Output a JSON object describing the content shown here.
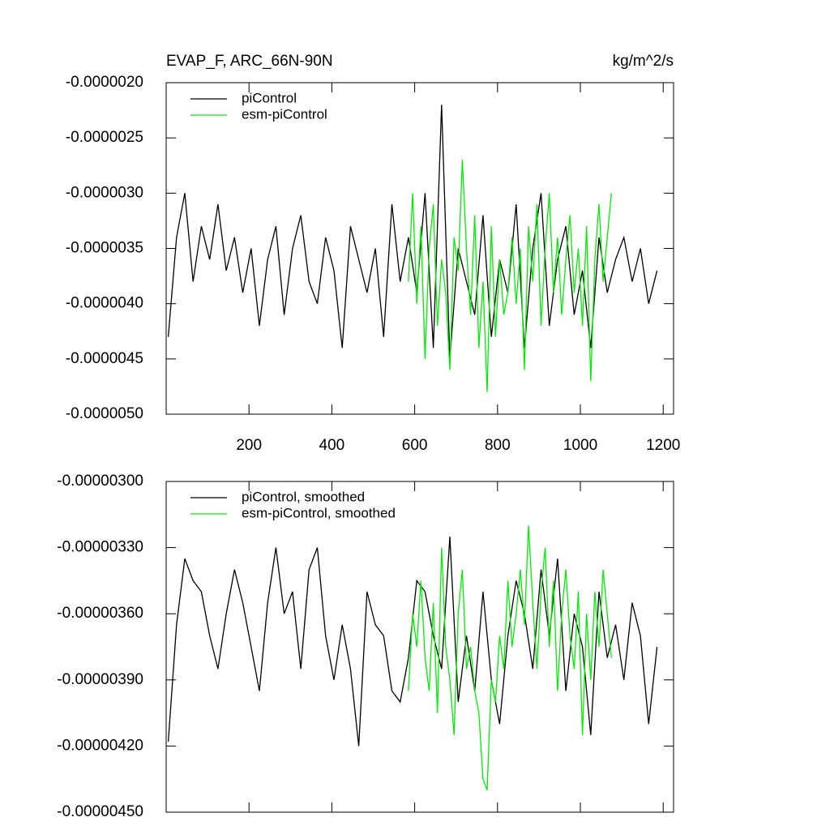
{
  "chart_data": [
    {
      "type": "line",
      "title": "EVAP_F, ARC_66N-90N",
      "units": "kg/m^2/s",
      "legend": "upper left",
      "xlim": [
        0,
        1225
      ],
      "xticks": [
        200,
        400,
        600,
        800,
        1000,
        1200
      ],
      "xtick_labels": true,
      "ylim": [
        -5e-06,
        -2e-06
      ],
      "yticks": [
        {
          "value": -5e-06,
          "label": "-0.0000050"
        },
        {
          "value": -4.5e-06,
          "label": "-0.0000045"
        },
        {
          "value": -4e-06,
          "label": "-0.0000040"
        },
        {
          "value": -3.5e-06,
          "label": "-0.0000035"
        },
        {
          "value": -3e-06,
          "label": "-0.0000030"
        },
        {
          "value": -2.5e-06,
          "label": "-0.0000025"
        },
        {
          "value": -2e-06,
          "label": "-0.0000020"
        }
      ],
      "series": [
        {
          "name": "piControl",
          "color": "#000000",
          "x": [
            5,
            25,
            45,
            65,
            85,
            105,
            125,
            145,
            165,
            185,
            205,
            225,
            245,
            265,
            285,
            305,
            325,
            345,
            365,
            385,
            405,
            425,
            445,
            465,
            485,
            505,
            525,
            545,
            565,
            585,
            605,
            625,
            645,
            665,
            685,
            705,
            725,
            745,
            765,
            785,
            805,
            825,
            845,
            865,
            885,
            905,
            925,
            945,
            965,
            985,
            1005,
            1025,
            1045,
            1065,
            1085,
            1105,
            1125,
            1145,
            1165,
            1185
          ],
          "values": [
            -4.3e-06,
            -3.4e-06,
            -3e-06,
            -3.8e-06,
            -3.3e-06,
            -3.6e-06,
            -3.1e-06,
            -3.7e-06,
            -3.4e-06,
            -3.9e-06,
            -3.5e-06,
            -4.2e-06,
            -3.6e-06,
            -3.3e-06,
            -4.1e-06,
            -3.5e-06,
            -3.2e-06,
            -3.8e-06,
            -4e-06,
            -3.4e-06,
            -3.7e-06,
            -4.4e-06,
            -3.3e-06,
            -3.6e-06,
            -3.9e-06,
            -3.5e-06,
            -4.3e-06,
            -3.1e-06,
            -3.8e-06,
            -3.4e-06,
            -3.9e-06,
            -3e-06,
            -4.4e-06,
            -2.2e-06,
            -4.5e-06,
            -3.5e-06,
            -3.8e-06,
            -4.1e-06,
            -3.2e-06,
            -4.3e-06,
            -3.6e-06,
            -3.9e-06,
            -3.1e-06,
            -4.4e-06,
            -3.5e-06,
            -3e-06,
            -4.2e-06,
            -3.6e-06,
            -3.3e-06,
            -4.1e-06,
            -3.7e-06,
            -4.4e-06,
            -3.4e-06,
            -3.9e-06,
            -3.6e-06,
            -3.4e-06,
            -3.8e-06,
            -3.5e-06,
            -4e-06,
            -3.7e-06
          ]
        },
        {
          "name": "esm-piControl",
          "color": "#00ee00",
          "x": [
            585,
            595,
            605,
            615,
            625,
            635,
            645,
            655,
            665,
            675,
            685,
            695,
            705,
            715,
            725,
            735,
            745,
            755,
            765,
            775,
            785,
            795,
            805,
            815,
            825,
            835,
            845,
            855,
            865,
            875,
            885,
            895,
            905,
            915,
            925,
            935,
            945,
            955,
            965,
            975,
            985,
            995,
            1005,
            1015,
            1025,
            1035,
            1045,
            1055,
            1065,
            1075
          ],
          "values": [
            -3.8e-06,
            -3e-06,
            -4e-06,
            -3.3e-06,
            -4.5e-06,
            -3.5e-06,
            -3.1e-06,
            -4.2e-06,
            -3.6e-06,
            -3.9e-06,
            -4.6e-06,
            -3.4e-06,
            -3.7e-06,
            -2.7e-06,
            -3.5e-06,
            -4.1e-06,
            -3.2e-06,
            -4.4e-06,
            -3.8e-06,
            -4.8e-06,
            -3.3e-06,
            -4.3e-06,
            -3.6e-06,
            -4.1e-06,
            -3.9e-06,
            -3.4e-06,
            -4e-06,
            -3.5e-06,
            -4.6e-06,
            -3.3e-06,
            -3.8e-06,
            -3.1e-06,
            -4.2e-06,
            -3.5e-06,
            -3e-06,
            -3.9e-06,
            -3.4e-06,
            -4.1e-06,
            -3.6e-06,
            -3.2e-06,
            -3.9e-06,
            -3.5e-06,
            -4.2e-06,
            -3.3e-06,
            -4.7e-06,
            -3.6e-06,
            -3.1e-06,
            -3.8e-06,
            -3.4e-06,
            -3e-06
          ]
        }
      ]
    },
    {
      "type": "line",
      "legend": "upper left",
      "xlim": [
        0,
        1225
      ],
      "xticks": [
        200,
        400,
        600,
        800,
        1000,
        1200
      ],
      "xtick_labels": false,
      "ylim": [
        -4.5e-06,
        -3e-06
      ],
      "yticks": [
        {
          "value": -4.5e-06,
          "label": "-0.00000450"
        },
        {
          "value": -4.2e-06,
          "label": "-0.00000420"
        },
        {
          "value": -3.9e-06,
          "label": "-0.00000390"
        },
        {
          "value": -3.6e-06,
          "label": "-0.00000360"
        },
        {
          "value": -3.3e-06,
          "label": "-0.00000330"
        },
        {
          "value": -3e-06,
          "label": "-0.00000300"
        }
      ],
      "series": [
        {
          "name": "piControl, smoothed",
          "color": "#000000",
          "x": [
            5,
            25,
            45,
            65,
            85,
            105,
            125,
            145,
            165,
            185,
            205,
            225,
            245,
            265,
            285,
            305,
            325,
            345,
            365,
            385,
            405,
            425,
            445,
            465,
            485,
            505,
            525,
            545,
            565,
            585,
            605,
            625,
            645,
            665,
            685,
            705,
            725,
            745,
            765,
            785,
            805,
            825,
            845,
            865,
            885,
            905,
            925,
            945,
            965,
            985,
            1005,
            1025,
            1045,
            1065,
            1085,
            1105,
            1125,
            1145,
            1165,
            1185
          ],
          "values": [
            -4.18e-06,
            -3.65e-06,
            -3.35e-06,
            -3.45e-06,
            -3.5e-06,
            -3.7e-06,
            -3.85e-06,
            -3.6e-06,
            -3.4e-06,
            -3.55e-06,
            -3.75e-06,
            -3.95e-06,
            -3.55e-06,
            -3.3e-06,
            -3.6e-06,
            -3.5e-06,
            -3.85e-06,
            -3.4e-06,
            -3.3e-06,
            -3.7e-06,
            -3.9e-06,
            -3.65e-06,
            -3.85e-06,
            -4.2e-06,
            -3.5e-06,
            -3.65e-06,
            -3.7e-06,
            -3.95e-06,
            -4e-06,
            -3.8e-06,
            -3.45e-06,
            -3.5e-06,
            -3.7e-06,
            -3.85e-06,
            -3.25e-06,
            -4e-06,
            -3.7e-06,
            -3.95e-06,
            -3.5e-06,
            -3.9e-06,
            -4.1e-06,
            -3.7e-06,
            -3.45e-06,
            -3.6e-06,
            -3.85e-06,
            -3.4e-06,
            -3.7e-06,
            -3.35e-06,
            -3.95e-06,
            -3.6e-06,
            -3.75e-06,
            -4.15e-06,
            -3.5e-06,
            -3.8e-06,
            -3.65e-06,
            -3.9e-06,
            -3.55e-06,
            -3.7e-06,
            -4.1e-06,
            -3.75e-06
          ]
        },
        {
          "name": "esm-piControl, smoothed",
          "color": "#00ee00",
          "x": [
            585,
            595,
            605,
            615,
            625,
            635,
            645,
            655,
            665,
            675,
            685,
            695,
            705,
            715,
            725,
            735,
            745,
            755,
            765,
            775,
            785,
            795,
            805,
            815,
            825,
            835,
            845,
            855,
            865,
            875,
            885,
            895,
            905,
            915,
            925,
            935,
            945,
            955,
            965,
            975,
            985,
            995,
            1005,
            1015,
            1025,
            1035,
            1045,
            1055,
            1065,
            1075
          ],
          "values": [
            -3.95e-06,
            -3.6e-06,
            -3.75e-06,
            -3.45e-06,
            -3.8e-06,
            -3.95e-06,
            -3.55e-06,
            -4.05e-06,
            -3.3e-06,
            -3.75e-06,
            -3.9e-06,
            -4.15e-06,
            -3.6e-06,
            -3.4e-06,
            -3.85e-06,
            -3.75e-06,
            -3.95e-06,
            -4.05e-06,
            -4.35e-06,
            -4.4e-06,
            -3.9e-06,
            -4e-06,
            -3.7e-06,
            -3.85e-06,
            -3.45e-06,
            -3.75e-06,
            -3.6e-06,
            -3.4e-06,
            -3.65e-06,
            -3.2e-06,
            -3.55e-06,
            -3.85e-06,
            -3.5e-06,
            -3.3e-06,
            -3.75e-06,
            -3.45e-06,
            -3.95e-06,
            -3.6e-06,
            -3.4e-06,
            -3.7e-06,
            -3.85e-06,
            -3.5e-06,
            -4.15e-06,
            -3.6e-06,
            -3.9e-06,
            -3.5e-06,
            -3.75e-06,
            -3.4e-06,
            -3.6e-06,
            -3.8e-06
          ]
        }
      ]
    }
  ]
}
